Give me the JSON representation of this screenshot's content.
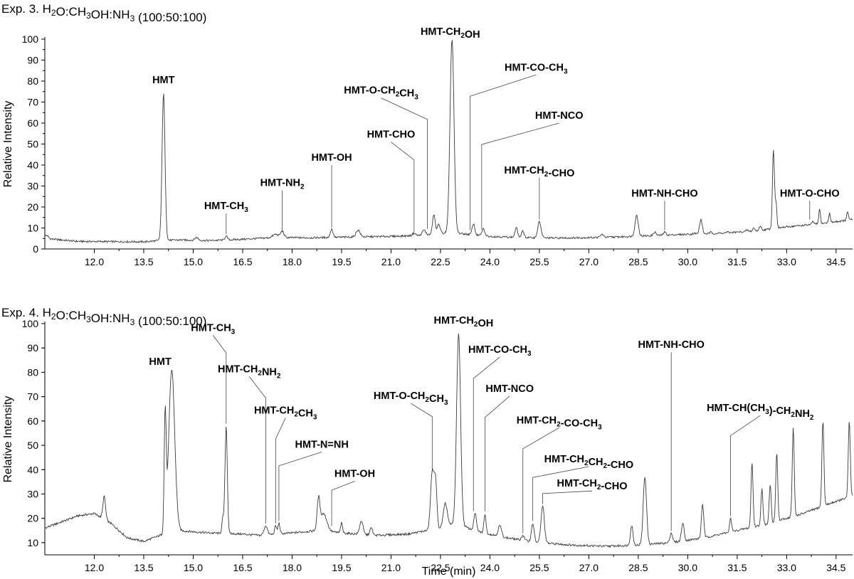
{
  "chart_data": [
    {
      "type": "line",
      "title": "Exp. 3. H_2O:CH_3OH:NH_3 (100:50:100)",
      "xlabel": "",
      "ylabel": "Relative Intensity",
      "xlim": [
        10.5,
        35.0
      ],
      "ylim": [
        0,
        100
      ],
      "xticks": [
        "12.0",
        "13.5",
        "15.0",
        "16.5",
        "18.0",
        "19.5",
        "21.0",
        "22.5",
        "24.0",
        "25.5",
        "27.0",
        "28.5",
        "30.0",
        "31.5",
        "33.0",
        "34.5"
      ],
      "yticks": [
        "0",
        "10",
        "20",
        "30",
        "40",
        "50",
        "60",
        "70",
        "80",
        "90",
        "100"
      ],
      "baseline": [
        [
          10.5,
          5
        ],
        [
          11.5,
          3.6
        ],
        [
          13.5,
          3.4
        ],
        [
          14.0,
          4
        ],
        [
          14.6,
          4.3
        ],
        [
          15.5,
          4
        ],
        [
          16.5,
          4.6
        ],
        [
          17.5,
          5.5
        ],
        [
          18.5,
          5.3
        ],
        [
          19.5,
          5.6
        ],
        [
          21.0,
          6
        ],
        [
          22.0,
          6.5
        ],
        [
          22.5,
          7.5
        ],
        [
          23.0,
          7.5
        ],
        [
          24.0,
          6
        ],
        [
          25.0,
          5.4
        ],
        [
          26.0,
          5.2
        ],
        [
          27.0,
          5.4
        ],
        [
          28.0,
          5.8
        ],
        [
          29.0,
          6.4
        ],
        [
          30.0,
          7
        ],
        [
          31.0,
          7.5
        ],
        [
          32.0,
          8.5
        ],
        [
          33.0,
          10.5
        ],
        [
          34.0,
          12
        ],
        [
          35.0,
          14
        ]
      ],
      "peaks": [
        {
          "x": 10.55,
          "y": 6.5,
          "w": 0.05
        },
        {
          "x": 14.1,
          "y": 74,
          "w": 0.045
        },
        {
          "x": 15.1,
          "y": 5.5,
          "w": 0.05
        },
        {
          "x": 16.0,
          "y": 6,
          "w": 0.04
        },
        {
          "x": 17.5,
          "y": 7,
          "w": 0.08
        },
        {
          "x": 17.7,
          "y": 8.5,
          "w": 0.05
        },
        {
          "x": 19.2,
          "y": 9.5,
          "w": 0.04
        },
        {
          "x": 20.0,
          "y": 9,
          "w": 0.06
        },
        {
          "x": 21.7,
          "y": 7.5,
          "w": 0.05
        },
        {
          "x": 22.0,
          "y": 9,
          "w": 0.05
        },
        {
          "x": 22.3,
          "y": 16.5,
          "w": 0.04
        },
        {
          "x": 22.45,
          "y": 12,
          "w": 0.04
        },
        {
          "x": 22.85,
          "y": 100,
          "w": 0.06
        },
        {
          "x": 23.5,
          "y": 12,
          "w": 0.04
        },
        {
          "x": 23.8,
          "y": 9.5,
          "w": 0.04
        },
        {
          "x": 24.8,
          "y": 10,
          "w": 0.04
        },
        {
          "x": 25.0,
          "y": 8.5,
          "w": 0.04
        },
        {
          "x": 25.5,
          "y": 13,
          "w": 0.05
        },
        {
          "x": 27.4,
          "y": 7,
          "w": 0.04
        },
        {
          "x": 28.45,
          "y": 16,
          "w": 0.05
        },
        {
          "x": 29.0,
          "y": 8,
          "w": 0.04
        },
        {
          "x": 29.3,
          "y": 8,
          "w": 0.04
        },
        {
          "x": 30.2,
          "y": 7.5,
          "w": 0.04
        },
        {
          "x": 30.4,
          "y": 14,
          "w": 0.04
        },
        {
          "x": 30.7,
          "y": 8,
          "w": 0.03
        },
        {
          "x": 31.2,
          "y": 8,
          "w": 0.03
        },
        {
          "x": 31.8,
          "y": 9,
          "w": 0.03
        },
        {
          "x": 32.0,
          "y": 10,
          "w": 0.03
        },
        {
          "x": 32.2,
          "y": 11,
          "w": 0.03
        },
        {
          "x": 32.6,
          "y": 47.5,
          "w": 0.03
        },
        {
          "x": 32.68,
          "y": 22,
          "w": 0.025
        },
        {
          "x": 33.8,
          "y": 13,
          "w": 0.03
        },
        {
          "x": 34.0,
          "y": 19,
          "w": 0.025
        },
        {
          "x": 34.3,
          "y": 17,
          "w": 0.025
        },
        {
          "x": 34.85,
          "y": 18,
          "w": 0.025
        }
      ],
      "annotations": [
        {
          "text": "HMT",
          "x": 14.1,
          "y": 79,
          "peak": [
            14.1,
            74
          ]
        },
        {
          "text": "HMT-CH_3",
          "x": 16.0,
          "y": 19,
          "peak": [
            16.0,
            6
          ]
        },
        {
          "text": "HMT-NH_2",
          "x": 17.7,
          "y": 30,
          "peak": [
            17.7,
            8
          ]
        },
        {
          "text": "HMT-OH",
          "x": 19.2,
          "y": 42,
          "peak": [
            19.2,
            9
          ]
        },
        {
          "text": "HMT-CHO",
          "x": 21.0,
          "y": 53,
          "peak": [
            21.7,
            7
          ]
        },
        {
          "text": "HMT-O-CH_2CH_3",
          "x": 20.7,
          "y": 74,
          "peak": [
            22.1,
            8.5
          ]
        },
        {
          "text": "HMT-CH_2OH",
          "x": 22.8,
          "y": 102,
          "peak": [
            22.85,
            100
          ]
        },
        {
          "text": "HMT-CO-CH_3",
          "x": 25.4,
          "y": 85,
          "peak": [
            23.4,
            8
          ]
        },
        {
          "text": "HMT-NCO",
          "x": 26.1,
          "y": 62,
          "peak": [
            23.75,
            8
          ]
        },
        {
          "text": "HMT-CH_2-CHO",
          "x": 25.5,
          "y": 36,
          "peak": [
            25.5,
            13
          ]
        },
        {
          "text": "HMT-NH-CHO",
          "x": 29.3,
          "y": 25,
          "peak": [
            29.3,
            8
          ]
        },
        {
          "text": "HMT-O-CHO",
          "x": 33.7,
          "y": 25,
          "peak": [
            33.7,
            13
          ]
        }
      ]
    },
    {
      "type": "line",
      "title": "Exp. 4. H_2O:CH_3OH:NH_3 (100:50:100)",
      "xlabel": "Time (min)",
      "ylabel": "Relative Intensity",
      "xlim": [
        10.5,
        35.0
      ],
      "ylim": [
        5,
        100
      ],
      "xticks": [
        "12.0",
        "13.5",
        "15.0",
        "16.5",
        "18.0",
        "19.5",
        "21.0",
        "22.5",
        "24.0",
        "25.5",
        "27.0",
        "28.5",
        "30.0",
        "31.5",
        "33.0",
        "34.5"
      ],
      "yticks": [
        "10",
        "20",
        "30",
        "40",
        "50",
        "60",
        "70",
        "80",
        "90",
        "100"
      ],
      "baseline": [
        [
          10.5,
          16
        ],
        [
          11.5,
          21
        ],
        [
          12.0,
          22
        ],
        [
          12.5,
          18
        ],
        [
          13.0,
          12
        ],
        [
          13.5,
          10.5
        ],
        [
          14.0,
          13
        ],
        [
          14.5,
          15
        ],
        [
          15.5,
          14
        ],
        [
          16.5,
          13.5
        ],
        [
          17.0,
          13
        ],
        [
          18.0,
          14
        ],
        [
          18.8,
          15
        ],
        [
          19.5,
          14
        ],
        [
          20.5,
          13
        ],
        [
          21.5,
          13.5
        ],
        [
          22.5,
          16
        ],
        [
          23.0,
          18
        ],
        [
          23.5,
          15
        ],
        [
          24.5,
          12
        ],
        [
          25.0,
          11
        ],
        [
          25.5,
          10
        ],
        [
          26.5,
          9
        ],
        [
          27.5,
          8.5
        ],
        [
          28.5,
          9
        ],
        [
          29.5,
          10
        ],
        [
          30.5,
          12
        ],
        [
          31.5,
          15
        ],
        [
          32.5,
          18
        ],
        [
          33.5,
          22
        ],
        [
          34.5,
          27
        ],
        [
          35.0,
          29
        ]
      ],
      "peaks": [
        {
          "x": 12.3,
          "y": 29,
          "w": 0.04
        },
        {
          "x": 14.15,
          "y": 61,
          "w": 0.03
        },
        {
          "x": 14.35,
          "y": 81,
          "w": 0.09
        },
        {
          "x": 15.9,
          "y": 20,
          "w": 0.03
        },
        {
          "x": 16.0,
          "y": 58,
          "w": 0.035
        },
        {
          "x": 17.2,
          "y": 17,
          "w": 0.05
        },
        {
          "x": 17.5,
          "y": 17,
          "w": 0.03
        },
        {
          "x": 17.6,
          "y": 18,
          "w": 0.03
        },
        {
          "x": 18.8,
          "y": 27,
          "w": 0.04
        },
        {
          "x": 18.95,
          "y": 22,
          "w": 0.1
        },
        {
          "x": 19.5,
          "y": 18,
          "w": 0.03
        },
        {
          "x": 20.1,
          "y": 19,
          "w": 0.05
        },
        {
          "x": 20.4,
          "y": 16,
          "w": 0.04
        },
        {
          "x": 22.25,
          "y": 39,
          "w": 0.05
        },
        {
          "x": 22.35,
          "y": 35,
          "w": 0.04
        },
        {
          "x": 22.65,
          "y": 26,
          "w": 0.06
        },
        {
          "x": 23.05,
          "y": 96,
          "w": 0.06
        },
        {
          "x": 23.55,
          "y": 22,
          "w": 0.04
        },
        {
          "x": 23.85,
          "y": 22,
          "w": 0.03
        },
        {
          "x": 24.3,
          "y": 17,
          "w": 0.05
        },
        {
          "x": 25.0,
          "y": 13,
          "w": 0.04
        },
        {
          "x": 25.3,
          "y": 18,
          "w": 0.04
        },
        {
          "x": 25.6,
          "y": 25,
          "w": 0.05
        },
        {
          "x": 28.3,
          "y": 17,
          "w": 0.04
        },
        {
          "x": 28.7,
          "y": 37,
          "w": 0.05
        },
        {
          "x": 29.5,
          "y": 14,
          "w": 0.04
        },
        {
          "x": 29.85,
          "y": 18,
          "w": 0.04
        },
        {
          "x": 30.45,
          "y": 26,
          "w": 0.035
        },
        {
          "x": 31.3,
          "y": 20,
          "w": 0.03
        },
        {
          "x": 31.95,
          "y": 43,
          "w": 0.03
        },
        {
          "x": 32.25,
          "y": 32,
          "w": 0.03
        },
        {
          "x": 32.5,
          "y": 34,
          "w": 0.03
        },
        {
          "x": 32.7,
          "y": 47,
          "w": 0.03
        },
        {
          "x": 33.2,
          "y": 57,
          "w": 0.03
        },
        {
          "x": 34.1,
          "y": 60,
          "w": 0.03
        },
        {
          "x": 34.9,
          "y": 60,
          "w": 0.03
        }
      ],
      "annotations": [
        {
          "text": "HMT",
          "x": 14.0,
          "y": 83,
          "peak": [
            14.2,
            82
          ]
        },
        {
          "text": "HMT-CH_3",
          "x": 15.6,
          "y": 97,
          "peak": [
            16.0,
            58
          ]
        },
        {
          "text": "HMT-CH_2NH_2",
          "x": 16.7,
          "y": 80,
          "peak": [
            17.2,
            17
          ]
        },
        {
          "text": "HMT-CH_2CH_3",
          "x": 17.8,
          "y": 63,
          "peak": [
            17.5,
            17
          ]
        },
        {
          "text": "HMT-N=NH",
          "x": 18.9,
          "y": 49,
          "peak": [
            17.6,
            18
          ]
        },
        {
          "text": "HMT-OH",
          "x": 19.9,
          "y": 37,
          "peak": [
            19.2,
            16
          ]
        },
        {
          "text": "HMT-O-CH_2CH_3",
          "x": 21.6,
          "y": 69,
          "peak": [
            22.25,
            39
          ]
        },
        {
          "text": "HMT-CH_2OH",
          "x": 23.2,
          "y": 100,
          "peak": [
            23.05,
            96
          ]
        },
        {
          "text": "HMT-CO-CH_3",
          "x": 24.3,
          "y": 88,
          "peak": [
            23.5,
            22
          ]
        },
        {
          "text": "HMT-NCO",
          "x": 24.6,
          "y": 72,
          "peak": [
            23.85,
            22
          ]
        },
        {
          "text": "HMT-CH_2-CO-CH_3",
          "x": 26.1,
          "y": 59,
          "peak": [
            25.0,
            13
          ]
        },
        {
          "text": "HMT-CH_2CH_2-CHO",
          "x": 27.0,
          "y": 43,
          "peak": [
            25.3,
            18
          ]
        },
        {
          "text": "HMT-CH_2-CHO",
          "x": 27.1,
          "y": 33,
          "peak": [
            25.6,
            25
          ]
        },
        {
          "text": "HMT-NH-CHO",
          "x": 29.5,
          "y": 90,
          "peak": [
            29.5,
            14
          ]
        },
        {
          "text": "HMT-CH(CH_3)-CH_2NH_2",
          "x": 32.2,
          "y": 64,
          "peak": [
            31.3,
            20
          ]
        }
      ]
    }
  ]
}
